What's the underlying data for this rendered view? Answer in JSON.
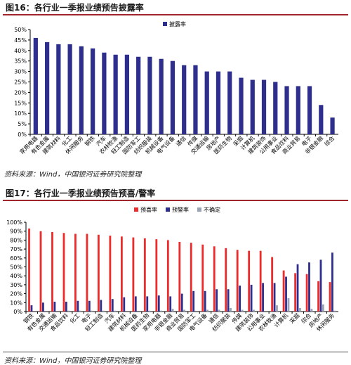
{
  "figures": [
    {
      "title": "图16：各行业一季报业绩预告披露率",
      "source": "资料来源：Wind，中国银河证券研究院整理"
    },
    {
      "title": "图17：各行业一季报业绩预告预喜/警率",
      "source": "资料来源：Wind，中国银河证券研究院整理"
    }
  ],
  "chart_data": [
    {
      "type": "bar",
      "series": [
        {
          "name": "披露率",
          "color": "#2e2f8c",
          "values": [
            46,
            44,
            43,
            43,
            42,
            41,
            39,
            38,
            38,
            37,
            37,
            36,
            35,
            33,
            33,
            30,
            30,
            30,
            27,
            26,
            26,
            25,
            23,
            23,
            23,
            14,
            8
          ]
        }
      ],
      "categories": [
        "家用电器",
        "有色金属",
        "建筑材料",
        "化工",
        "休闲服务",
        "钢铁",
        "汽车",
        "农林牧渔",
        "轻工制造",
        "国防军工",
        "纺织服装",
        "机械设备",
        "电气设备",
        "通信",
        "传媒",
        "交通运输",
        "房地产",
        "医药生物",
        "采掘",
        "计算机",
        "建筑装饰",
        "公用事业",
        "食品饮料",
        "商业贸易",
        "电子",
        "非银金融",
        "综合"
      ],
      "ylim": [
        0,
        50
      ],
      "yticks": [
        "0%",
        "5%",
        "10%",
        "15%",
        "20%",
        "25%",
        "30%",
        "35%",
        "40%",
        "45%",
        "50%"
      ],
      "legend": "top-center"
    },
    {
      "type": "bar",
      "series": [
        {
          "name": "预喜率",
          "color": "#ee2b2b",
          "values": [
            93,
            90,
            89,
            88,
            87,
            87,
            86,
            85,
            84,
            83,
            82,
            81,
            80,
            78,
            77,
            75,
            73,
            71,
            69,
            68,
            68,
            61,
            46,
            43,
            42,
            34,
            33
          ]
        },
        {
          "name": "预警率",
          "color": "#2e2f8c",
          "values": [
            7,
            10,
            11,
            11,
            12,
            12,
            13,
            14,
            16,
            17,
            17,
            18,
            17,
            20,
            23,
            23,
            25,
            25,
            29,
            30,
            32,
            32,
            39,
            53,
            55,
            58,
            66
          ]
        },
        {
          "name": "不确定",
          "color": "#9aa3b5",
          "values": [
            0,
            0,
            0,
            1,
            1,
            1,
            1,
            1,
            0,
            0,
            1,
            1,
            3,
            2,
            0,
            2,
            2,
            4,
            2,
            2,
            0,
            7,
            15,
            4,
            3,
            8,
            1
          ]
        }
      ],
      "categories": [
        "钢铁",
        "有色金属",
        "交通运输",
        "食品饮料",
        "化工",
        "电子",
        "轻工制造",
        "汽车",
        "建筑材料",
        "机械设备",
        "医药生物",
        "家用电器",
        "非银金融",
        "商业贸易",
        "国防军工",
        "电气设备",
        "通信",
        "纺织服装",
        "传媒",
        "建筑装饰",
        "公用事业",
        "农林牧渔",
        "计算机",
        "采掘",
        "综合",
        "房地产",
        "休闲服务"
      ],
      "ylim": [
        0,
        100
      ],
      "yticks": [
        "0%",
        "10%",
        "20%",
        "30%",
        "40%",
        "50%",
        "60%",
        "70%",
        "80%",
        "90%",
        "100%"
      ],
      "legend": "top-center"
    }
  ]
}
